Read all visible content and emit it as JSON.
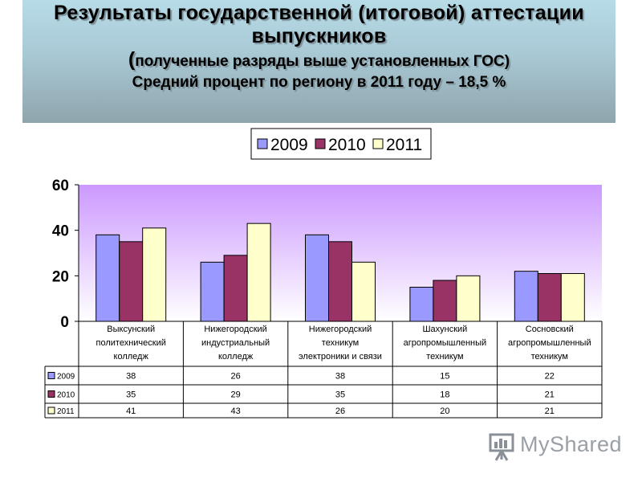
{
  "header": {
    "title_line1": "Результаты государственной (итоговой)   аттестации",
    "title_line2": "выпускников",
    "subtitle_open": "(",
    "subtitle": "полученные разряды выше установленных ГОС)",
    "subtitle_line2": "Средний процент по региону в 2011 году – 18,5 %"
  },
  "logo": {
    "text": "MyShared",
    "icon": "presentation-board-icon"
  },
  "chart_data": {
    "type": "bar",
    "categories": [
      [
        "Выксунский",
        "политехнический",
        "колледж"
      ],
      [
        "Нижегородский",
        "индустриальный",
        "колледж"
      ],
      [
        "Нижегородский",
        "техникум",
        "электроники и связи"
      ],
      [
        "Шахунский",
        "агропромышленный",
        "техникум"
      ],
      [
        "Сосновский",
        "агропромышленный",
        "техникум"
      ]
    ],
    "series": [
      {
        "name": "2009",
        "color": "#9999ff",
        "values": [
          38,
          26,
          38,
          15,
          22
        ]
      },
      {
        "name": "2010",
        "color": "#993366",
        "values": [
          35,
          29,
          35,
          18,
          21
        ]
      },
      {
        "name": "2011",
        "color": "#ffffcc",
        "values": [
          41,
          43,
          26,
          20,
          21
        ]
      }
    ],
    "ylim": [
      0,
      60
    ],
    "yticks": [
      0,
      20,
      40,
      60
    ],
    "legend_position": "top",
    "plot_background": "lavender-to-white gradient",
    "data_table": true,
    "grid": false
  }
}
